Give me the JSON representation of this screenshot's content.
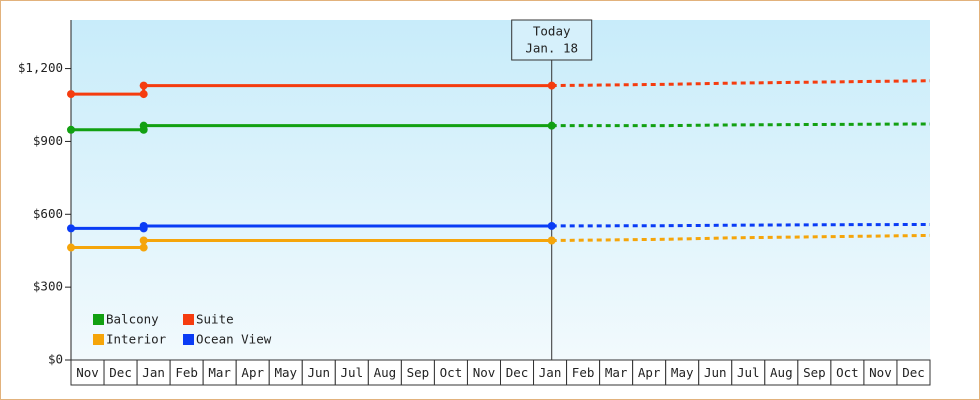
{
  "chart_data": {
    "type": "line",
    "xlim": [
      0,
      26
    ],
    "ylim": [
      0,
      1400
    ],
    "yticks": [
      {
        "value": 0,
        "label": "$0"
      },
      {
        "value": 300,
        "label": "$300"
      },
      {
        "value": 600,
        "label": "$600"
      },
      {
        "value": 900,
        "label": "$900"
      },
      {
        "value": 1200,
        "label": "$1,200"
      }
    ],
    "xticks": [
      {
        "value": 0.5,
        "label": "Nov"
      },
      {
        "value": 1.5,
        "label": "Dec"
      },
      {
        "value": 2.5,
        "label": "Jan"
      },
      {
        "value": 3.5,
        "label": "Feb"
      },
      {
        "value": 4.5,
        "label": "Mar"
      },
      {
        "value": 5.5,
        "label": "Apr"
      },
      {
        "value": 6.5,
        "label": "May"
      },
      {
        "value": 7.5,
        "label": "Jun"
      },
      {
        "value": 8.5,
        "label": "Jul"
      },
      {
        "value": 9.5,
        "label": "Aug"
      },
      {
        "value": 10.5,
        "label": "Sep"
      },
      {
        "value": 11.5,
        "label": "Oct"
      },
      {
        "value": 12.5,
        "label": "Nov"
      },
      {
        "value": 13.5,
        "label": "Dec"
      },
      {
        "value": 14.5,
        "label": "Jan"
      },
      {
        "value": 15.5,
        "label": "Feb"
      },
      {
        "value": 16.5,
        "label": "Mar"
      },
      {
        "value": 17.5,
        "label": "Apr"
      },
      {
        "value": 18.5,
        "label": "May"
      },
      {
        "value": 19.5,
        "label": "Jun"
      },
      {
        "value": 20.5,
        "label": "Jul"
      },
      {
        "value": 21.5,
        "label": "Aug"
      },
      {
        "value": 22.5,
        "label": "Sep"
      },
      {
        "value": 23.5,
        "label": "Oct"
      },
      {
        "value": 24.5,
        "label": "Nov"
      },
      {
        "value": 25.5,
        "label": "Dec"
      }
    ],
    "x": [
      0,
      2.2,
      2.2,
      14.55
    ],
    "forecast_x": [
      14.55,
      18,
      20,
      23,
      26
    ],
    "series": [
      {
        "name": "Balcony",
        "color": "#12a012",
        "values": [
          948,
          948,
          965,
          965
        ],
        "forecast": [
          965,
          965,
          968,
          970,
          972
        ]
      },
      {
        "name": "Suite",
        "color": "#f53c0f",
        "values": [
          1095,
          1095,
          1130,
          1130
        ],
        "forecast": [
          1130,
          1135,
          1140,
          1145,
          1150
        ]
      },
      {
        "name": "Interior",
        "color": "#f5a50a",
        "values": [
          463,
          463,
          492,
          492
        ],
        "forecast": [
          492,
          497,
          503,
          508,
          513
        ]
      },
      {
        "name": "Ocean View",
        "color": "#0a3cf5",
        "values": [
          542,
          542,
          552,
          552
        ],
        "forecast": [
          552,
          553,
          555,
          557,
          558
        ]
      }
    ],
    "annotation": {
      "x": 14.55,
      "lines": [
        "Today",
        "Jan. 18"
      ]
    }
  }
}
